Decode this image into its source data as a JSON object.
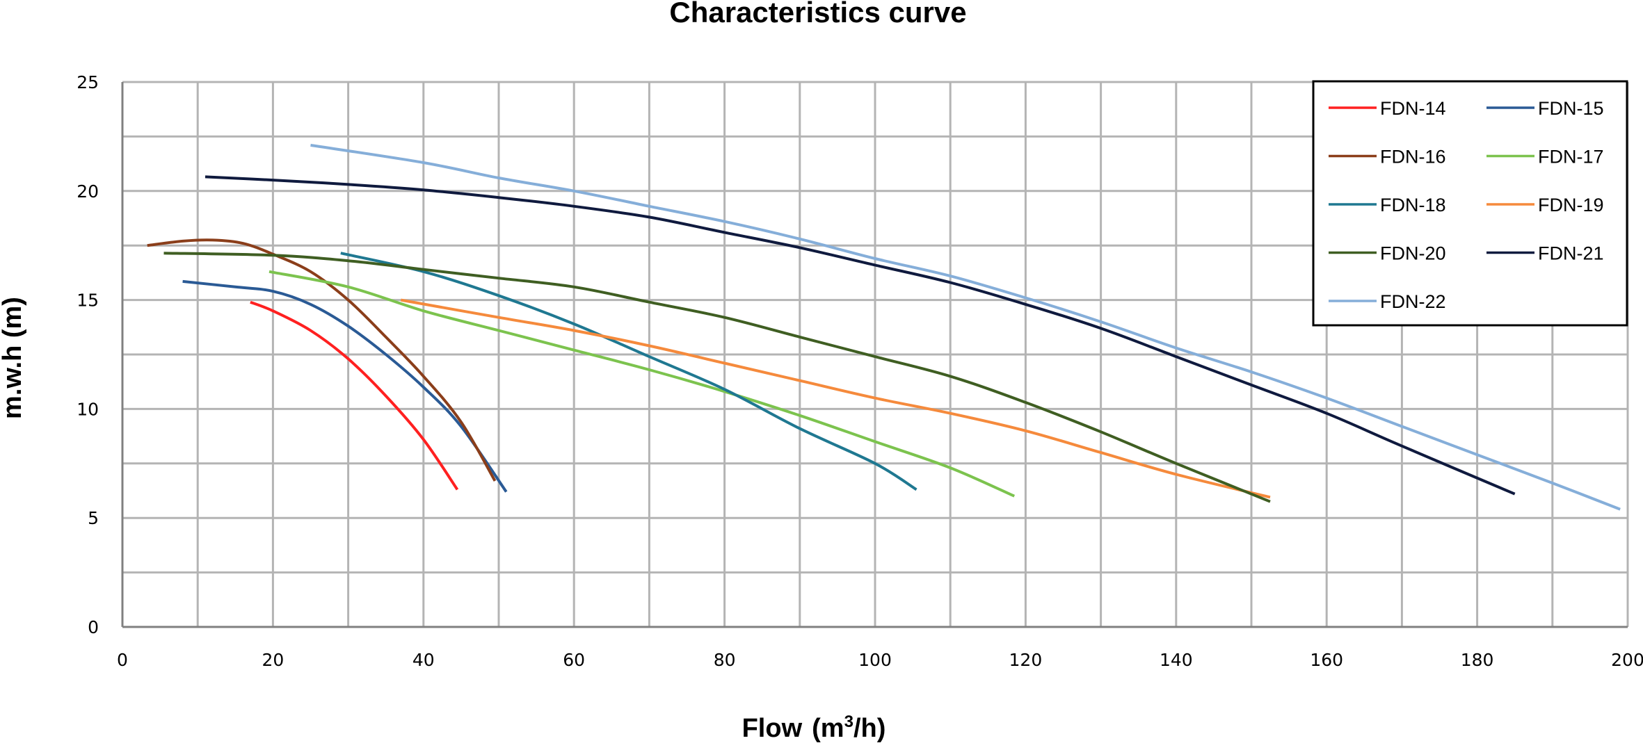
{
  "chart_data": {
    "type": "line",
    "title": "Characteristics curve",
    "xlabel": "Flow",
    "xlabel_unit_prefix": "(m",
    "xlabel_unit_sup": "3",
    "xlabel_unit_suffix": "/h)",
    "ylabel": "m.w.h (m)",
    "xlim": [
      0,
      200
    ],
    "ylim": [
      0,
      25
    ],
    "x_ticks": [
      0,
      20,
      40,
      60,
      80,
      100,
      120,
      140,
      160,
      180,
      200
    ],
    "y_ticks": [
      0,
      5,
      10,
      15,
      20,
      25
    ],
    "x_minor_grid_step": 10,
    "y_minor_grid_step": 2.5,
    "grid": true,
    "legend_position": "top-right",
    "series": [
      {
        "name": "FDN-14",
        "color": "#ff2020",
        "points": [
          [
            17,
            14.9
          ],
          [
            20,
            14.5
          ],
          [
            25,
            13.6
          ],
          [
            30,
            12.3
          ],
          [
            35,
            10.6
          ],
          [
            40,
            8.6
          ],
          [
            44.5,
            6.3
          ]
        ]
      },
      {
        "name": "FDN-15",
        "color": "#2a5a95",
        "points": [
          [
            8,
            15.85
          ],
          [
            15,
            15.6
          ],
          [
            20,
            15.4
          ],
          [
            25,
            14.8
          ],
          [
            30,
            13.8
          ],
          [
            35,
            12.5
          ],
          [
            40,
            11.0
          ],
          [
            45,
            9.2
          ],
          [
            51,
            6.2
          ]
        ]
      },
      {
        "name": "FDN-16",
        "color": "#8b3e1a",
        "points": [
          [
            3.3,
            17.5
          ],
          [
            8,
            17.7
          ],
          [
            12,
            17.75
          ],
          [
            16,
            17.6
          ],
          [
            20,
            17.1
          ],
          [
            25,
            16.3
          ],
          [
            30,
            15.0
          ],
          [
            35,
            13.3
          ],
          [
            40,
            11.5
          ],
          [
            45,
            9.4
          ],
          [
            49.5,
            6.7
          ]
        ]
      },
      {
        "name": "FDN-17",
        "color": "#7cc34e",
        "points": [
          [
            19.5,
            16.3
          ],
          [
            30,
            15.6
          ],
          [
            40,
            14.5
          ],
          [
            50,
            13.6
          ],
          [
            60,
            12.7
          ],
          [
            70,
            11.8
          ],
          [
            80,
            10.8
          ],
          [
            90,
            9.7
          ],
          [
            100,
            8.5
          ],
          [
            110,
            7.3
          ],
          [
            118.5,
            6.0
          ]
        ]
      },
      {
        "name": "FDN-18",
        "color": "#1f7891",
        "points": [
          [
            29,
            17.15
          ],
          [
            40,
            16.3
          ],
          [
            50,
            15.2
          ],
          [
            60,
            13.9
          ],
          [
            70,
            12.4
          ],
          [
            80,
            10.9
          ],
          [
            90,
            9.1
          ],
          [
            100,
            7.5
          ],
          [
            105.5,
            6.3
          ]
        ]
      },
      {
        "name": "FDN-19",
        "color": "#f58a3c",
        "points": [
          [
            37,
            15.0
          ],
          [
            50,
            14.2
          ],
          [
            60,
            13.6
          ],
          [
            70,
            12.9
          ],
          [
            80,
            12.1
          ],
          [
            90,
            11.3
          ],
          [
            100,
            10.5
          ],
          [
            110,
            9.8
          ],
          [
            120,
            9.0
          ],
          [
            130,
            8.0
          ],
          [
            140,
            7.0
          ],
          [
            152.5,
            5.95
          ]
        ]
      },
      {
        "name": "FDN-20",
        "color": "#3f5e22",
        "points": [
          [
            5.5,
            17.15
          ],
          [
            20,
            17.05
          ],
          [
            30,
            16.8
          ],
          [
            40,
            16.4
          ],
          [
            50,
            16.0
          ],
          [
            60,
            15.6
          ],
          [
            70,
            14.9
          ],
          [
            80,
            14.2
          ],
          [
            90,
            13.3
          ],
          [
            100,
            12.4
          ],
          [
            110,
            11.5
          ],
          [
            120,
            10.3
          ],
          [
            130,
            8.95
          ],
          [
            140,
            7.5
          ],
          [
            152.5,
            5.75
          ]
        ]
      },
      {
        "name": "FDN-21",
        "color": "#0f1a3e",
        "points": [
          [
            11,
            20.65
          ],
          [
            20,
            20.5
          ],
          [
            30,
            20.3
          ],
          [
            40,
            20.05
          ],
          [
            50,
            19.7
          ],
          [
            60,
            19.3
          ],
          [
            70,
            18.8
          ],
          [
            80,
            18.1
          ],
          [
            90,
            17.4
          ],
          [
            100,
            16.6
          ],
          [
            110,
            15.8
          ],
          [
            120,
            14.8
          ],
          [
            130,
            13.7
          ],
          [
            140,
            12.4
          ],
          [
            150,
            11.1
          ],
          [
            160,
            9.8
          ],
          [
            170,
            8.3
          ],
          [
            185,
            6.1
          ]
        ]
      },
      {
        "name": "FDN-22",
        "color": "#85aed9",
        "points": [
          [
            25,
            22.1
          ],
          [
            40,
            21.3
          ],
          [
            50,
            20.6
          ],
          [
            60,
            20.0
          ],
          [
            70,
            19.3
          ],
          [
            80,
            18.6
          ],
          [
            90,
            17.8
          ],
          [
            100,
            16.9
          ],
          [
            110,
            16.1
          ],
          [
            120,
            15.1
          ],
          [
            130,
            14.0
          ],
          [
            140,
            12.8
          ],
          [
            150,
            11.7
          ],
          [
            160,
            10.5
          ],
          [
            170,
            9.2
          ],
          [
            180,
            7.9
          ],
          [
            190,
            6.6
          ],
          [
            199,
            5.4
          ]
        ]
      }
    ]
  }
}
